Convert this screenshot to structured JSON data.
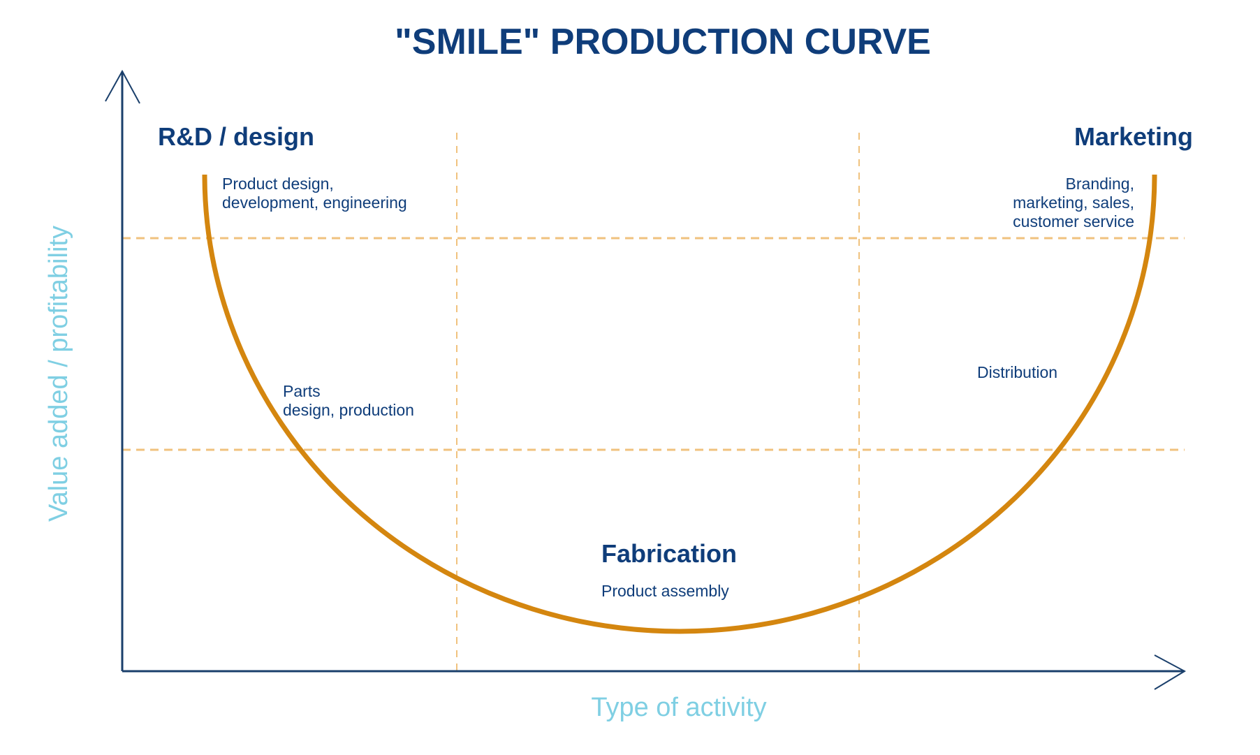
{
  "title": "\"SMILE\" PRODUCTION CURVE",
  "axes": {
    "x_label": "Type of activity",
    "y_label": "Value added / profitability"
  },
  "stages": {
    "left": {
      "heading": "R&D / design",
      "detail": "Product design,\ndevelopment, engineering",
      "sub_detail": "Parts\ndesign, production"
    },
    "middle": {
      "heading": "Fabrication",
      "detail": "Product assembly"
    },
    "right": {
      "heading": "Marketing",
      "detail": "Branding,\nmarketing, sales,\ncustomer service",
      "sub_detail": "Distribution"
    }
  },
  "colors": {
    "text": "#0f3d7a",
    "axis_label": "#7fcfe3",
    "curve": "#d4860f",
    "grid": "#f0c27e",
    "axis": "#1a3f6b"
  }
}
